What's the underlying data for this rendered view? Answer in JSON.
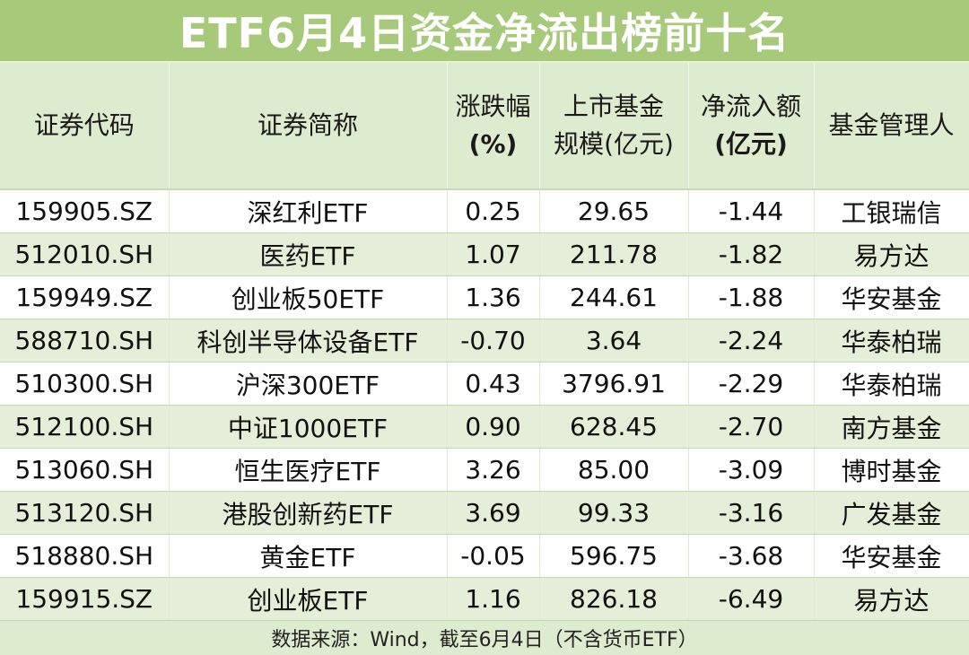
{
  "title": "ETF6月4日资金净流出榜前十名",
  "headers": {
    "code": "证券代码",
    "name": "证券简称",
    "change_line1": "涨跌幅",
    "change_line2": "(%)",
    "size_line1": "上市基金",
    "size_line2": "规模(亿元)",
    "outflow_line1": "净流入额",
    "outflow_line2": "(亿元)",
    "manager": "基金管理人"
  },
  "rows": [
    {
      "code": "159905.SZ",
      "name": "深红利ETF",
      "change": "0.25",
      "size": "29.65",
      "flow": "-1.44",
      "manager": "工银瑞信"
    },
    {
      "code": "512010.SH",
      "name": "医药ETF",
      "change": "1.07",
      "size": "211.78",
      "flow": "-1.82",
      "manager": "易方达"
    },
    {
      "code": "159949.SZ",
      "name": "创业板50ETF",
      "change": "1.36",
      "size": "244.61",
      "flow": "-1.88",
      "manager": "华安基金"
    },
    {
      "code": "588710.SH",
      "name": "科创半导体设备ETF",
      "change": "-0.70",
      "size": "3.64",
      "flow": "-2.24",
      "manager": "华泰柏瑞"
    },
    {
      "code": "510300.SH",
      "name": "沪深300ETF",
      "change": "0.43",
      "size": "3796.91",
      "flow": "-2.29",
      "manager": "华泰柏瑞"
    },
    {
      "code": "512100.SH",
      "name": "中证1000ETF",
      "change": "0.90",
      "size": "628.45",
      "flow": "-2.70",
      "manager": "南方基金"
    },
    {
      "code": "513060.SH",
      "name": "恒生医疗ETF",
      "change": "3.26",
      "size": "85.00",
      "flow": "-3.09",
      "manager": "博时基金"
    },
    {
      "code": "513120.SH",
      "name": "港股创新药ETF",
      "change": "3.69",
      "size": "99.33",
      "flow": "-3.16",
      "manager": "广发基金"
    },
    {
      "code": "518880.SH",
      "name": "黄金ETF",
      "change": "-0.05",
      "size": "596.75",
      "flow": "-3.68",
      "manager": "华安基金"
    },
    {
      "code": "159915.SZ",
      "name": "创业板ETF",
      "change": "1.16",
      "size": "826.18",
      "flow": "-6.49",
      "manager": "易方达"
    }
  ],
  "footer": "数据来源：Wind，截至6月4日（不含货币ETF）",
  "colors": {
    "title_bg": "#a7c97a",
    "header_bg": "#ddebcf",
    "stripe_bg": "#e4eed8"
  }
}
